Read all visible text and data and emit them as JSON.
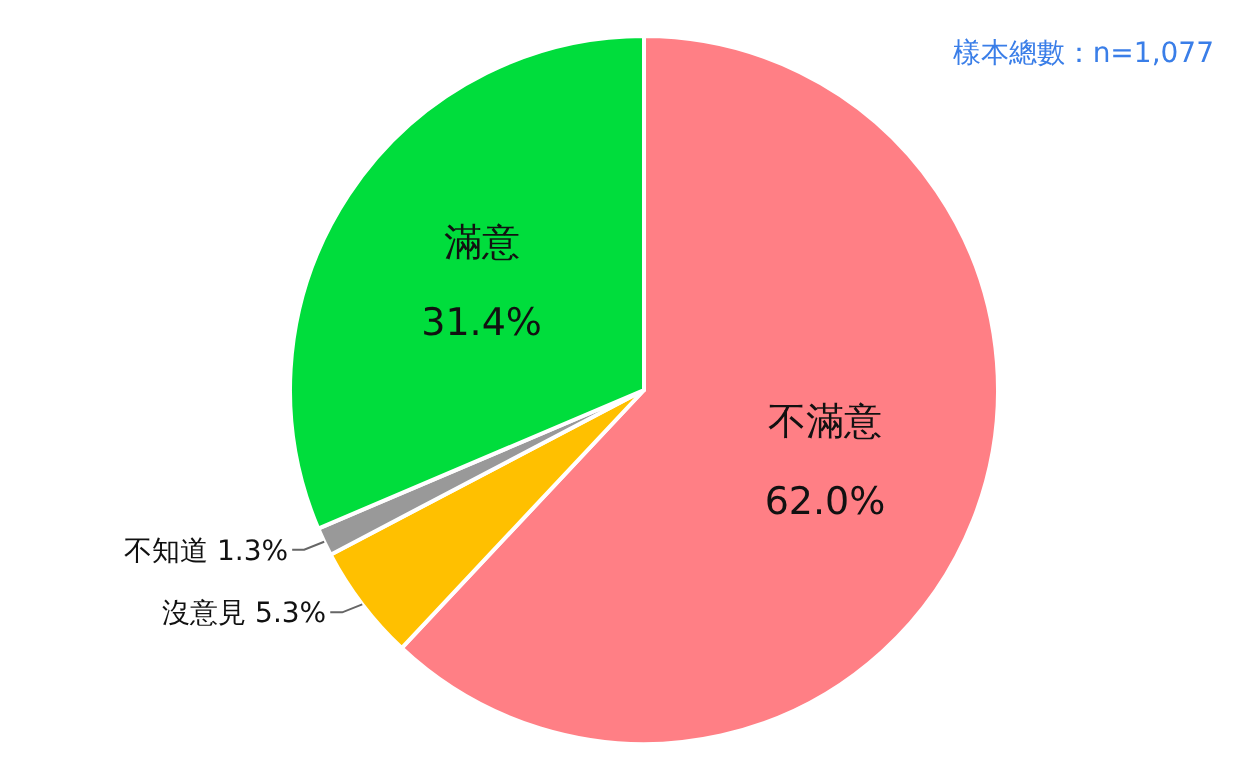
{
  "chart_data": {
    "type": "pie",
    "categories": [
      "不滿意",
      "沒意見",
      "不知道",
      "滿意"
    ],
    "values": [
      62.0,
      5.3,
      1.3,
      31.4
    ],
    "value_labels": [
      "62.0%",
      "5.3%",
      "1.3%",
      "31.4%"
    ],
    "colors": [
      "#ff7f85",
      "#ffc000",
      "#999999",
      "#00dd3c"
    ],
    "annotations": [
      "樣本總數：n=1,077"
    ],
    "legend": false
  }
}
